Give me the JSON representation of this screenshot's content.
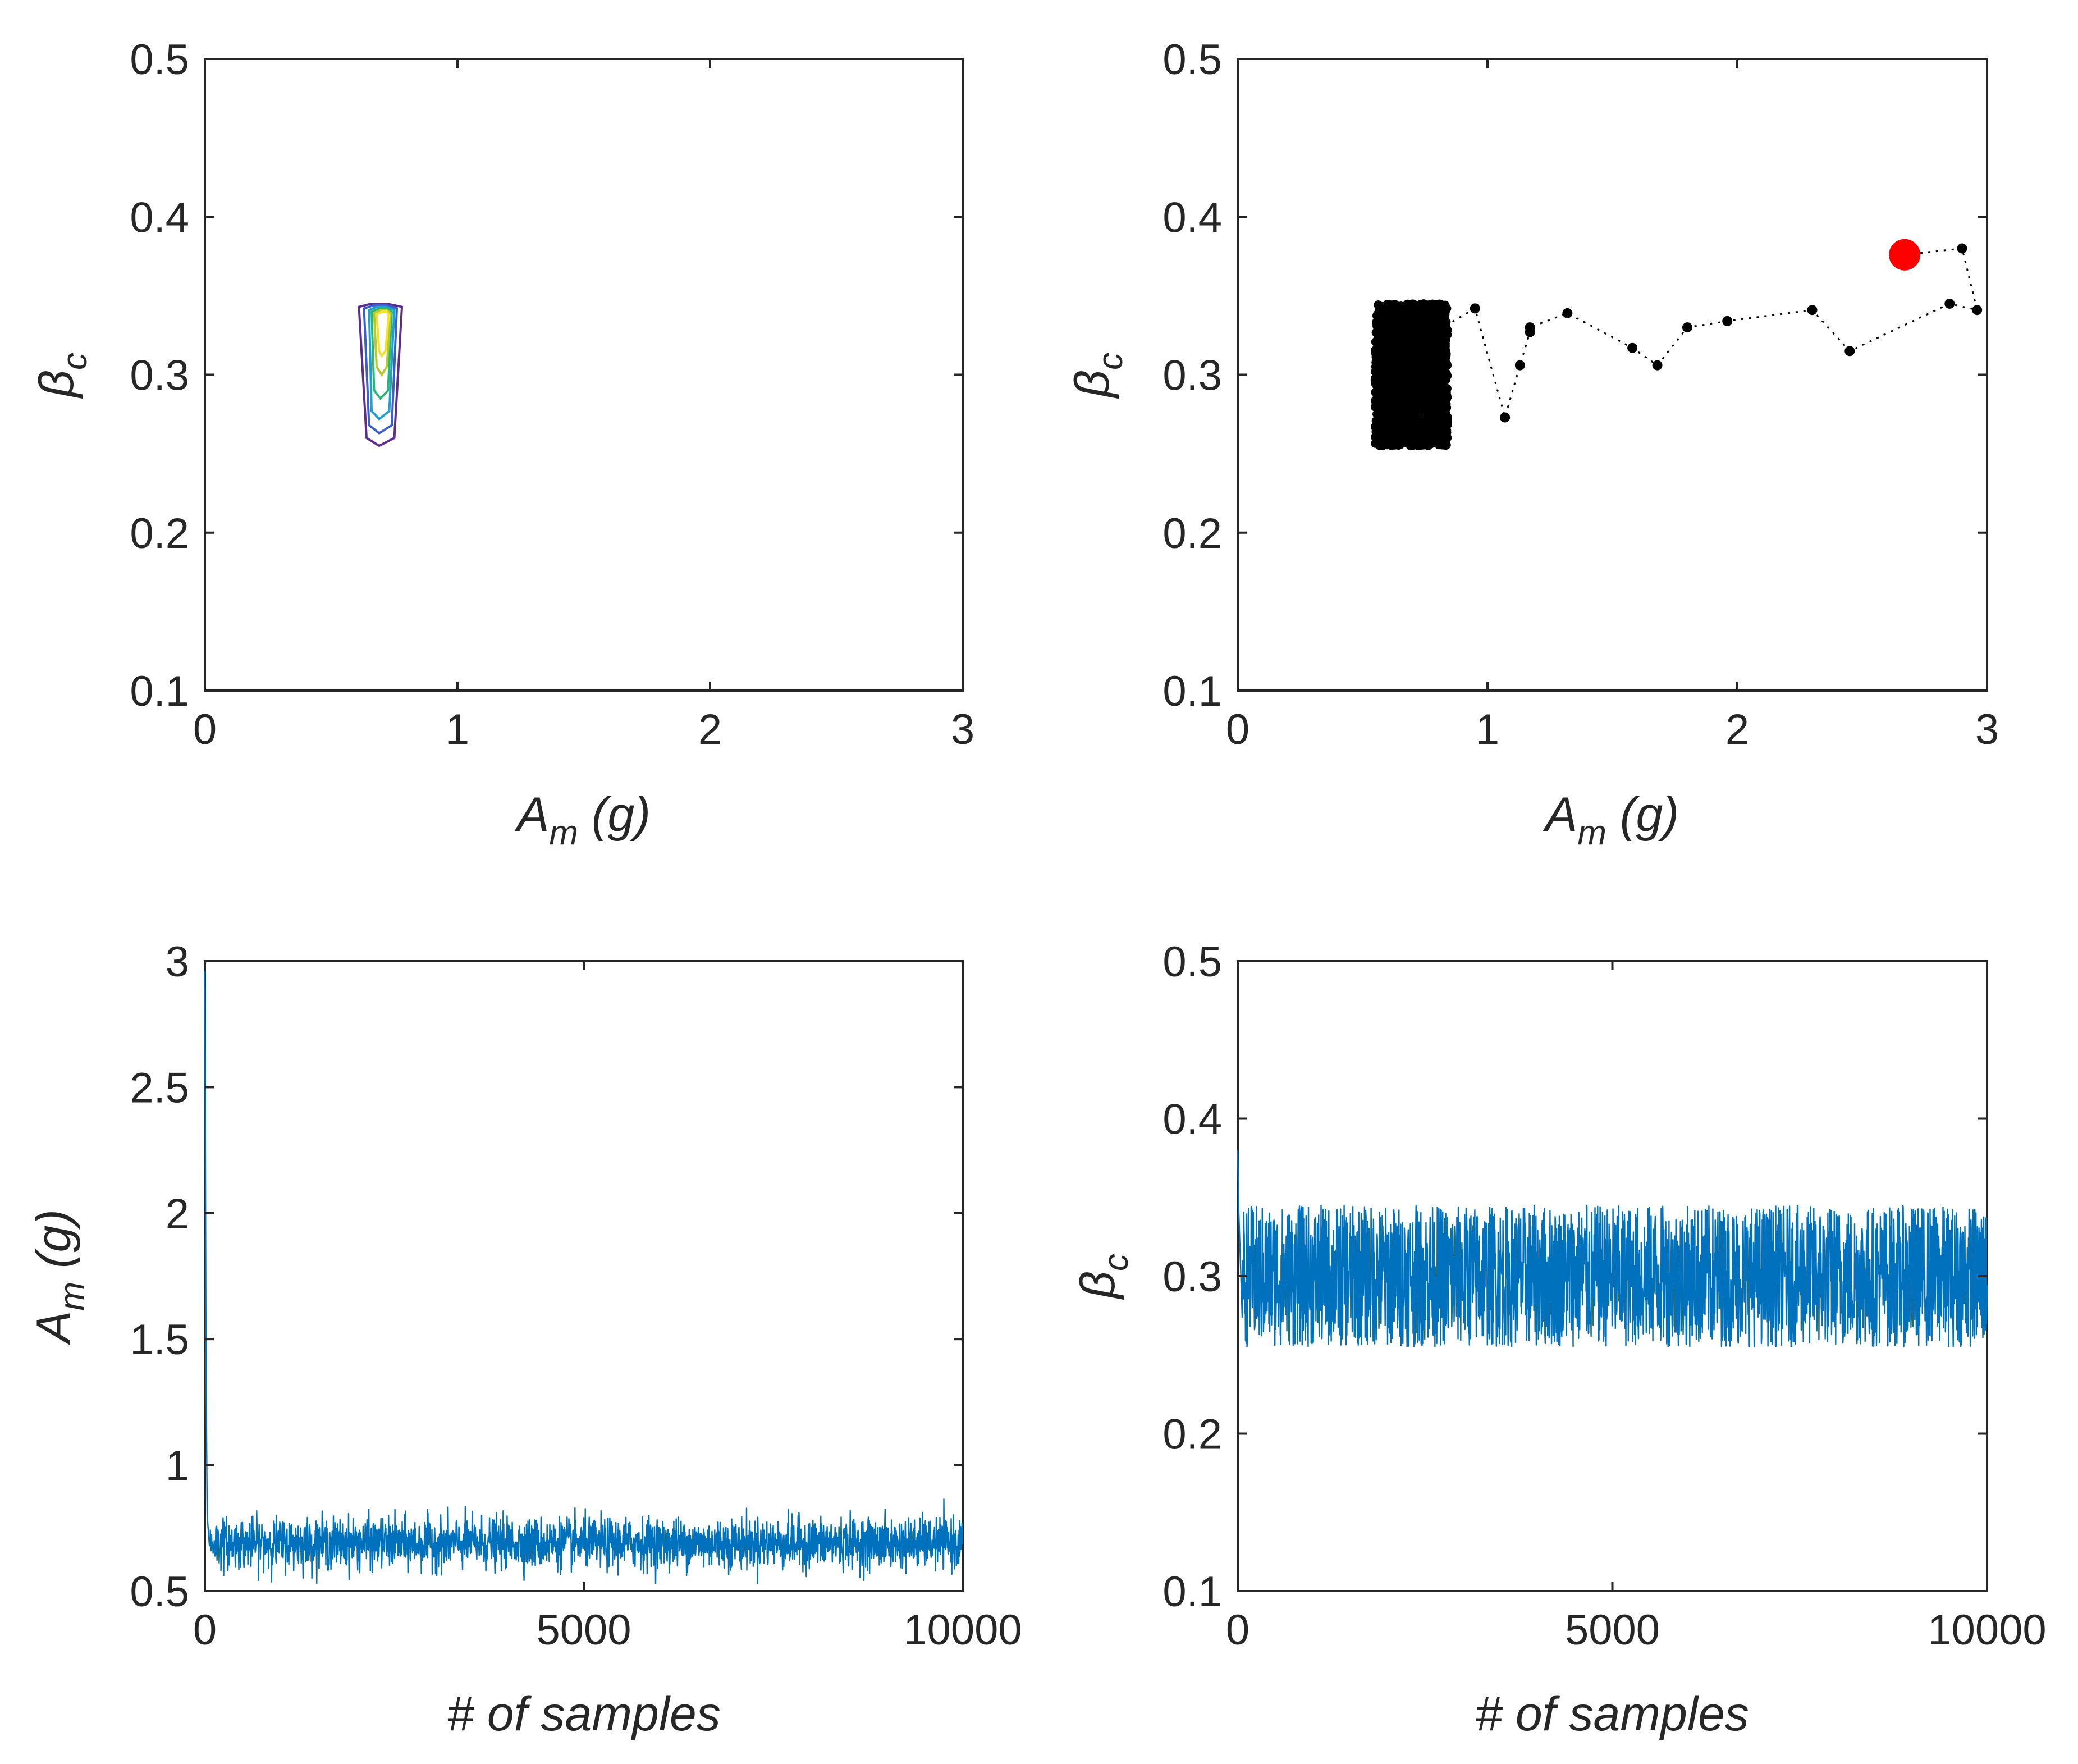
{
  "chart_data": [
    {
      "id": "contour",
      "type": "contour",
      "xlabel": "A_m (g)",
      "ylabel": "β_c",
      "xlim": [
        0,
        3
      ],
      "ylim": [
        0.1,
        0.5
      ],
      "xticks": [
        "0",
        "1",
        "2",
        "3"
      ],
      "yticks": [
        "0.1",
        "0.2",
        "0.3",
        "0.4",
        "0.5"
      ],
      "contours": [
        {
          "color": "#5b2d8e",
          "points": [
            [
              0.61,
              0.343
            ],
            [
              0.66,
              0.345
            ],
            [
              0.72,
              0.345
            ],
            [
              0.78,
              0.343
            ],
            [
              0.75,
              0.26
            ],
            [
              0.69,
              0.255
            ],
            [
              0.64,
              0.26
            ]
          ]
        },
        {
          "color": "#3a5fcd",
          "points": [
            [
              0.63,
              0.342
            ],
            [
              0.67,
              0.344
            ],
            [
              0.72,
              0.344
            ],
            [
              0.76,
              0.342
            ],
            [
              0.74,
              0.268
            ],
            [
              0.69,
              0.263
            ],
            [
              0.65,
              0.268
            ]
          ]
        },
        {
          "color": "#1f9ed1",
          "points": [
            [
              0.65,
              0.341
            ],
            [
              0.68,
              0.343
            ],
            [
              0.72,
              0.343
            ],
            [
              0.75,
              0.341
            ],
            [
              0.73,
              0.277
            ],
            [
              0.69,
              0.272
            ],
            [
              0.66,
              0.277
            ]
          ]
        },
        {
          "color": "#2bb673",
          "points": [
            [
              0.66,
              0.34
            ],
            [
              0.69,
              0.342
            ],
            [
              0.72,
              0.342
            ],
            [
              0.74,
              0.34
            ],
            [
              0.725,
              0.29
            ],
            [
              0.695,
              0.285
            ],
            [
              0.67,
              0.29
            ]
          ]
        },
        {
          "color": "#b8c92d",
          "points": [
            [
              0.67,
              0.339
            ],
            [
              0.695,
              0.341
            ],
            [
              0.72,
              0.341
            ],
            [
              0.735,
              0.339
            ],
            [
              0.72,
              0.305
            ],
            [
              0.7,
              0.3
            ],
            [
              0.68,
              0.305
            ]
          ]
        },
        {
          "color": "#f5e02a",
          "points": [
            [
              0.68,
              0.338
            ],
            [
              0.7,
              0.34
            ],
            [
              0.72,
              0.34
            ],
            [
              0.728,
              0.338
            ],
            [
              0.715,
              0.315
            ],
            [
              0.7,
              0.312
            ],
            [
              0.69,
              0.315
            ]
          ]
        }
      ]
    },
    {
      "id": "chain-path",
      "type": "scatter",
      "xlabel": "A_m (g)",
      "ylabel": "β_c",
      "xlim": [
        0,
        3
      ],
      "ylim": [
        0.1,
        0.5
      ],
      "xticks": [
        "0",
        "1",
        "2",
        "3"
      ],
      "yticks": [
        "0.1",
        "0.2",
        "0.3",
        "0.4",
        "0.5"
      ],
      "start_point": {
        "x": 2.67,
        "y": 0.376,
        "color": "#ff0000"
      },
      "path": [
        [
          2.67,
          0.376
        ],
        [
          2.9,
          0.38
        ],
        [
          2.96,
          0.341
        ],
        [
          2.85,
          0.345
        ],
        [
          2.45,
          0.315
        ],
        [
          2.3,
          0.341
        ],
        [
          1.96,
          0.334
        ],
        [
          1.8,
          0.33
        ],
        [
          1.68,
          0.306
        ],
        [
          1.58,
          0.317
        ],
        [
          1.32,
          0.339
        ],
        [
          1.17,
          0.33
        ],
        [
          1.17,
          0.327
        ],
        [
          1.13,
          0.306
        ],
        [
          1.07,
          0.273
        ],
        [
          0.95,
          0.342
        ],
        [
          0.82,
          0.33
        ]
      ],
      "cluster": {
        "x_range": [
          0.55,
          0.84
        ],
        "y_range": [
          0.255,
          0.345
        ],
        "color": "#000000"
      }
    },
    {
      "id": "trace-am",
      "type": "line",
      "xlabel": "# of samples",
      "ylabel": "A_m (g)",
      "xlim": [
        0,
        10000
      ],
      "ylim": [
        0.5,
        3
      ],
      "xticks": [
        "0",
        "5000",
        "10000"
      ],
      "yticks": [
        "0.5",
        "1",
        "1.5",
        "2",
        "2.5",
        "3"
      ],
      "color": "#0072bd",
      "n_samples": 10000,
      "initial": [
        2.96,
        1.4,
        0.8
      ],
      "stationary_mean": 0.69,
      "stationary_min": 0.53,
      "stationary_max": 0.88
    },
    {
      "id": "trace-beta",
      "type": "line",
      "xlabel": "# of samples",
      "ylabel": "β_c",
      "xlim": [
        0,
        10000
      ],
      "ylim": [
        0.1,
        0.5
      ],
      "xticks": [
        "0",
        "5000",
        "10000"
      ],
      "yticks": [
        "0.1",
        "0.2",
        "0.3",
        "0.4",
        "0.5"
      ],
      "color": "#0072bd",
      "n_samples": 10000,
      "initial": [
        0.38,
        0.34
      ],
      "stationary_mean": 0.3,
      "stationary_min": 0.255,
      "stationary_max": 0.345
    }
  ]
}
